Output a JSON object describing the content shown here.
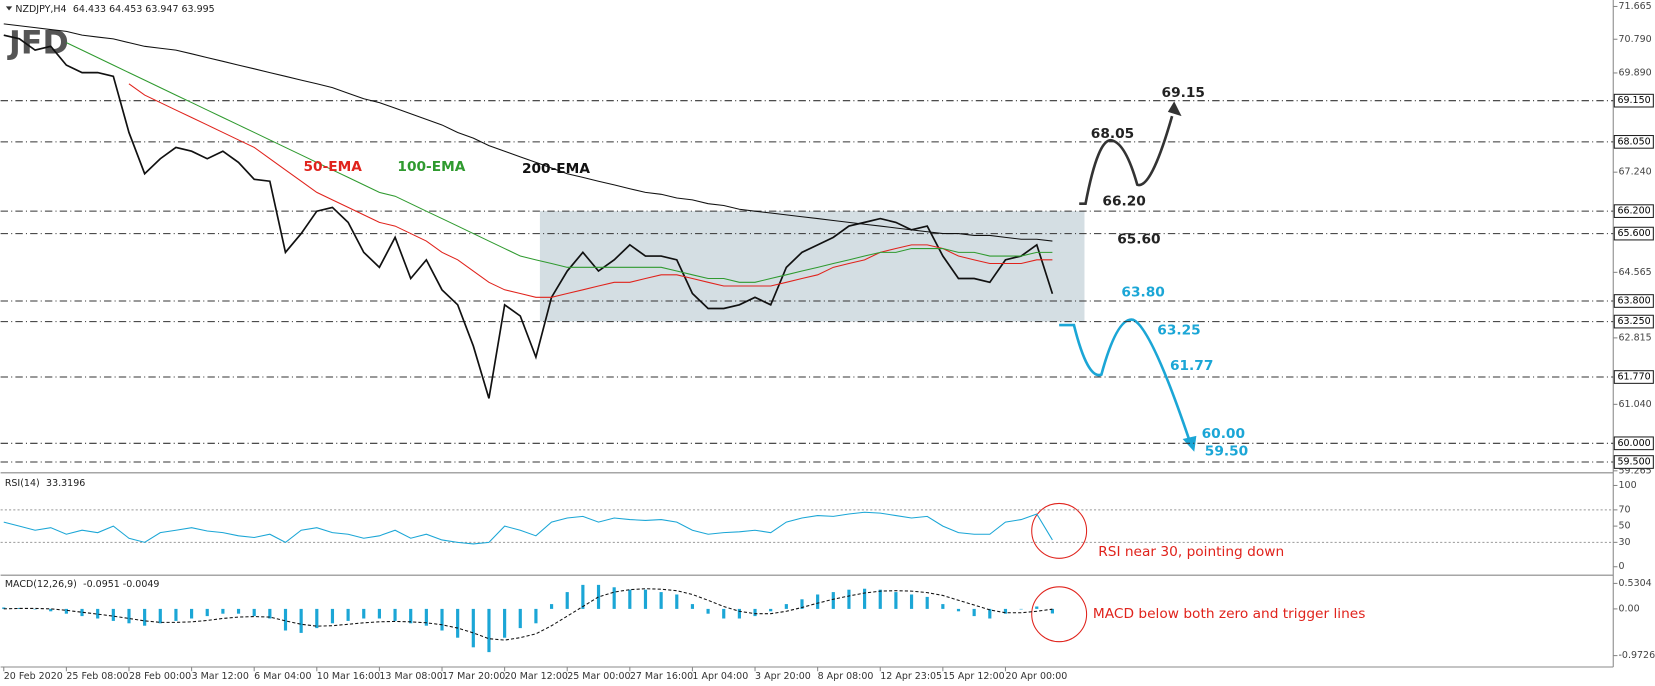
{
  "logo": "JFD",
  "chart_data": [
    {
      "type": "line",
      "title": "NZDJPY,H4",
      "quote": "64.433 64.453 63.947 63.995",
      "categories": [
        "20 Feb 2020",
        null,
        null,
        null,
        "25 Feb 08:00",
        null,
        null,
        null,
        "28 Feb 00:00",
        null,
        null,
        null,
        "3 Mar 12:00",
        null,
        null,
        null,
        "6 Mar 04:00",
        null,
        null,
        null,
        "10 Mar 16:00",
        null,
        null,
        null,
        "13 Mar 08:00",
        null,
        null,
        null,
        "17 Mar 20:00",
        null,
        null,
        null,
        "20 Mar 12:00",
        null,
        null,
        null,
        "25 Mar 00:00",
        null,
        null,
        null,
        "27 Mar 16:00",
        null,
        null,
        null,
        "1 Apr 04:00",
        null,
        null,
        null,
        "3 Apr 20:00",
        null,
        null,
        null,
        "8 Apr 08:00",
        null,
        null,
        null,
        "12 Apr 23:05",
        null,
        null,
        null,
        "15 Apr 12:00",
        null,
        null,
        null,
        "20 Apr 00:00",
        null,
        null,
        null
      ],
      "series": [
        {
          "color": "#111111",
          "values": [
            70.9,
            70.8,
            70.5,
            70.6,
            70.1,
            69.9,
            69.9,
            69.8,
            68.3,
            67.2,
            67.6,
            67.9,
            67.8,
            67.6,
            67.8,
            67.5,
            67.05,
            67.0,
            65.1,
            65.6,
            66.2,
            66.3,
            65.9,
            65.1,
            64.7,
            65.5,
            64.4,
            64.9,
            64.1,
            63.7,
            62.6,
            61.2,
            63.7,
            63.4,
            62.3,
            63.9,
            64.6,
            65.1,
            64.6,
            64.9,
            65.3,
            65.0,
            65.0,
            64.9,
            64.0,
            63.6,
            63.6,
            63.7,
            63.9,
            63.7,
            64.7,
            65.1,
            65.3,
            65.5,
            65.8,
            65.9,
            66.0,
            65.9,
            65.7,
            65.8,
            65.0,
            64.4,
            64.4,
            64.3,
            64.9,
            65.0,
            65.3,
            63.995
          ]
        },
        {
          "name": "50-EMA",
          "color": "#e0231c",
          "values": [
            null,
            null,
            null,
            null,
            null,
            null,
            null,
            null,
            69.6,
            69.3,
            69.1,
            68.9,
            68.7,
            68.5,
            68.3,
            68.1,
            67.9,
            67.6,
            67.3,
            67.0,
            66.7,
            66.5,
            66.3,
            66.1,
            65.9,
            65.8,
            65.6,
            65.4,
            65.1,
            64.9,
            64.6,
            64.3,
            64.1,
            64.0,
            63.9,
            63.9,
            64.0,
            64.1,
            64.2,
            64.3,
            64.3,
            64.4,
            64.5,
            64.5,
            64.4,
            64.3,
            64.2,
            64.2,
            64.2,
            64.2,
            64.3,
            64.4,
            64.5,
            64.7,
            64.8,
            64.9,
            65.1,
            65.2,
            65.3,
            65.3,
            65.2,
            65.0,
            64.9,
            64.8,
            64.8,
            64.8,
            64.9,
            64.9
          ]
        },
        {
          "name": "100-EMA",
          "color": "#2f9a2f",
          "values": [
            null,
            null,
            null,
            null,
            70.7,
            70.5,
            70.3,
            70.1,
            69.9,
            69.7,
            69.5,
            69.3,
            69.1,
            68.9,
            68.7,
            68.5,
            68.3,
            68.1,
            67.9,
            67.7,
            67.5,
            67.3,
            67.1,
            66.9,
            66.7,
            66.6,
            66.4,
            66.2,
            66.0,
            65.8,
            65.6,
            65.4,
            65.2,
            65.0,
            64.9,
            64.8,
            64.7,
            64.7,
            64.7,
            64.7,
            64.7,
            64.7,
            64.7,
            64.6,
            64.5,
            64.4,
            64.4,
            64.3,
            64.3,
            64.4,
            64.5,
            64.6,
            64.7,
            64.8,
            64.9,
            65.0,
            65.1,
            65.1,
            65.2,
            65.2,
            65.2,
            65.1,
            65.1,
            65.0,
            65.0,
            65.0,
            65.1,
            65.1
          ]
        },
        {
          "name": "200-EMA",
          "color": "#111111",
          "values": [
            71.2,
            71.15,
            71.1,
            71.05,
            71.0,
            70.9,
            70.85,
            70.8,
            70.7,
            70.6,
            70.55,
            70.5,
            70.4,
            70.3,
            70.2,
            70.1,
            70.0,
            69.9,
            69.8,
            69.7,
            69.6,
            69.5,
            69.35,
            69.2,
            69.1,
            68.95,
            68.8,
            68.65,
            68.5,
            68.3,
            68.15,
            67.95,
            67.8,
            67.65,
            67.5,
            67.35,
            67.2,
            67.1,
            67.0,
            66.9,
            66.8,
            66.7,
            66.65,
            66.55,
            66.5,
            66.4,
            66.35,
            66.25,
            66.2,
            66.15,
            66.1,
            66.05,
            66.0,
            65.95,
            65.9,
            65.85,
            65.8,
            65.75,
            65.7,
            65.65,
            65.6,
            65.6,
            65.55,
            65.55,
            65.5,
            65.45,
            65.45,
            65.4
          ]
        }
      ],
      "ylim": [
        59.24,
        71.81
      ],
      "yticks": [
        71.665,
        {
          "value": 70.79,
          "label": "70.790"
        },
        {
          "value": 69.89,
          "label": "69.890"
        },
        {
          "value": 67.24,
          "label": "67.240"
        },
        64.565,
        62.815,
        {
          "value": 61.04,
          "label": "61.040"
        },
        59.265
      ],
      "levels": [
        {
          "value": 69.15,
          "label": "69.150",
          "annotation": "69.15",
          "color": "#222222"
        },
        {
          "value": 68.05,
          "label": "68.050",
          "annotation": "68.05",
          "color": "#222222"
        },
        {
          "value": 66.2,
          "label": "66.200",
          "annotation": "66.20",
          "color": "#222222"
        },
        {
          "value": 65.6,
          "label": "65.600",
          "annotation": "65.60",
          "color": "#222222"
        },
        {
          "value": 63.8,
          "label": "63.800",
          "annotation": "63.80",
          "color": "#1ba6d6"
        },
        {
          "value": 63.25,
          "label": "63.250",
          "annotation": "63.25",
          "color": "#1ba6d6"
        },
        {
          "value": 61.77,
          "label": "61.770",
          "annotation": "61.77",
          "color": "#1ba6d6"
        },
        {
          "value": 60.0,
          "label": "60.000",
          "annotation": "60.00",
          "color": "#1ba6d6"
        },
        {
          "value": 59.5,
          "label": "59.500",
          "annotation": "59.50",
          "color": "#1ba6d6"
        }
      ]
    },
    {
      "type": "line",
      "title": "RSI(14)",
      "readout": "33.3196",
      "series": [
        {
          "color": "#1ba6d6",
          "values": [
            55,
            50,
            45,
            48,
            40,
            45,
            42,
            50,
            35,
            30,
            42,
            45,
            48,
            44,
            42,
            38,
            36,
            40,
            30,
            45,
            48,
            42,
            40,
            35,
            38,
            45,
            35,
            40,
            33,
            30,
            28,
            30,
            50,
            45,
            38,
            55,
            60,
            62,
            55,
            60,
            58,
            57,
            58,
            55,
            45,
            40,
            42,
            43,
            45,
            42,
            55,
            60,
            63,
            62,
            65,
            67,
            66,
            63,
            60,
            62,
            50,
            42,
            40,
            40,
            55,
            58,
            65,
            33
          ]
        }
      ],
      "ylim": [
        -7.8,
        113
      ],
      "yticks": [
        100,
        70,
        50,
        30,
        0
      ],
      "levels": [
        30,
        70
      ],
      "annotation": "RSI near 30, pointing down"
    },
    {
      "type": "bar",
      "title": "MACD(12,26,9)",
      "readout": "-0.0951 -0.0049",
      "series": [
        {
          "color": "#1ba6d6",
          "values": [
            0.03,
            0.02,
            0.0,
            -0.05,
            -0.1,
            -0.15,
            -0.2,
            -0.25,
            -0.3,
            -0.35,
            -0.3,
            -0.25,
            -0.2,
            -0.15,
            -0.1,
            -0.1,
            -0.15,
            -0.2,
            -0.45,
            -0.5,
            -0.4,
            -0.3,
            -0.25,
            -0.2,
            -0.2,
            -0.25,
            -0.3,
            -0.35,
            -0.45,
            -0.6,
            -0.8,
            -0.9,
            -0.6,
            -0.4,
            -0.3,
            0.1,
            0.35,
            0.5,
            0.5,
            0.45,
            0.4,
            0.4,
            0.35,
            0.3,
            0.1,
            -0.1,
            -0.2,
            -0.2,
            -0.15,
            -0.05,
            0.1,
            0.2,
            0.3,
            0.35,
            0.4,
            0.42,
            0.4,
            0.35,
            0.3,
            0.25,
            0.1,
            -0.05,
            -0.15,
            -0.2,
            -0.1,
            0.0,
            0.05,
            -0.0951
          ]
        },
        {
          "type": "line",
          "color": "#111111",
          "values": [
            0.0,
            0.01,
            0.01,
            0.0,
            -0.03,
            -0.07,
            -0.11,
            -0.15,
            -0.2,
            -0.25,
            -0.28,
            -0.28,
            -0.27,
            -0.24,
            -0.2,
            -0.17,
            -0.16,
            -0.17,
            -0.25,
            -0.32,
            -0.36,
            -0.35,
            -0.32,
            -0.29,
            -0.27,
            -0.26,
            -0.27,
            -0.29,
            -0.33,
            -0.4,
            -0.5,
            -0.62,
            -0.65,
            -0.6,
            -0.52,
            -0.35,
            -0.15,
            0.05,
            0.25,
            0.35,
            0.4,
            0.42,
            0.41,
            0.38,
            0.3,
            0.18,
            0.05,
            -0.05,
            -0.1,
            -0.1,
            -0.05,
            0.03,
            0.12,
            0.2,
            0.27,
            0.33,
            0.37,
            0.38,
            0.37,
            0.34,
            0.28,
            0.18,
            0.08,
            -0.02,
            -0.08,
            -0.08,
            -0.05,
            -0.0049
          ]
        }
      ],
      "ylim": [
        -1.21,
        0.68
      ],
      "yticks": [
        0.5304,
        {
          "value": 0,
          "label": "0.00"
        },
        -0.9726
      ],
      "annotation": "MACD below both zero and trigger lines"
    }
  ]
}
